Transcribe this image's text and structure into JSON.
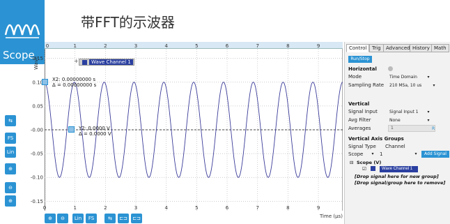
{
  "app": {
    "logo_label": "Scope",
    "title": "带FFT的示波器"
  },
  "left_tools": [
    "cursor-icon",
    "FS",
    "Lin",
    "zoom-fit-icon",
    "zoom-out-icon",
    "zoom-in-icon"
  ],
  "bottom_tools": [
    "zoom-in-icon",
    "zoom-out-icon",
    "Lin",
    "FS",
    "cursor-a-icon",
    "cursor-b-icon",
    "cursor-c-icon"
  ],
  "legend": {
    "series": "Wave Channel 1"
  },
  "cursors": {
    "x_line1": "X2: 0.00000000 s",
    "x_line2": "Δ = 0.00000000 s",
    "y_line1": "Y2: 0.0000 V",
    "y_line2": "Δ = 0.0000 V"
  },
  "chart_data": {
    "type": "line",
    "title": "",
    "xlabel": "Time (μs)",
    "ylabel": "Wave",
    "x_ticks": [
      "0",
      "1",
      "2",
      "3",
      "4",
      "5",
      "6",
      "7",
      "8",
      "9"
    ],
    "y_ticks": [
      "0.15",
      "0.10",
      "0.05",
      "-0.00",
      "-0.05",
      "-0.10",
      "-0.15"
    ],
    "xlim": [
      0,
      9.8
    ],
    "ylim": [
      -0.17,
      0.17
    ],
    "series": [
      {
        "name": "Wave Channel 1",
        "amplitude": 0.1,
        "period_us": 0.98,
        "color": "#3b3b9a"
      }
    ],
    "grid": true
  },
  "panel": {
    "tabs": [
      "Control",
      "Trig",
      "Advanced",
      "History",
      "Math"
    ],
    "active_tab": "Control",
    "run_stop": "Run/Stop",
    "horizontal": {
      "heading": "Horizontal",
      "mode_label": "Mode",
      "mode_value": "Time Domain",
      "rate_label": "Sampling Rate",
      "rate_value": "210 MSa, 10 us"
    },
    "vertical": {
      "heading": "Vertical",
      "signal_input_label": "Signal Input",
      "signal_input_value": "Signal Input 1",
      "avg_filter_label": "Avg Filter",
      "avg_filter_value": "None",
      "averages_label": "Averages",
      "averages_value": "1",
      "averages_btn": "R"
    },
    "groups": {
      "heading": "Vertical Axis Groups",
      "signal_type_label": "Signal Type",
      "channel_label": "Channel",
      "signal_type_value": "Scope",
      "channel_value": "1",
      "add_signal": "Add Signal",
      "scope_node": "Scope (V)",
      "wave_channel": "Wave Channel 1",
      "drop_new_group": "[Drop signal here for new group]",
      "drop_remove": "[Drop signal/group here to remove]"
    }
  },
  "colors": {
    "accent": "#2b93d3",
    "trace": "#3b3b9a"
  }
}
